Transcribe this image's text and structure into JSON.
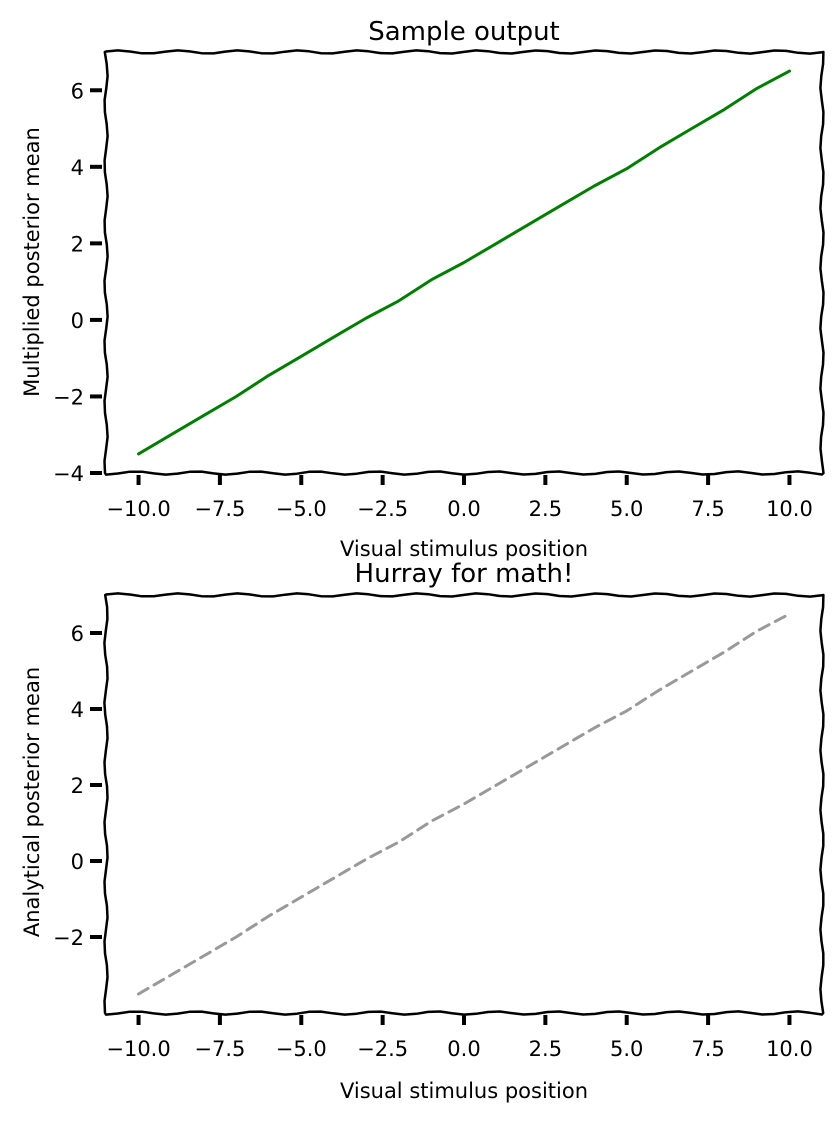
{
  "chart_data": [
    {
      "type": "line",
      "title": "Sample output",
      "xlabel": "Visual stimulus position",
      "ylabel": "Multiplied posterior mean",
      "xlim": [
        -11.0,
        11.0
      ],
      "ylim": [
        -4.0,
        7.0
      ],
      "xticks": [
        -10.0,
        -7.5,
        -5.0,
        -2.5,
        0.0,
        2.5,
        5.0,
        7.5,
        10.0
      ],
      "xtick_labels": [
        "−10.0",
        "−7.5",
        "−5.0",
        "−2.5",
        "0.0",
        "2.5",
        "5.0",
        "7.5",
        "10.0"
      ],
      "yticks": [
        -4,
        -2,
        0,
        2,
        4,
        6
      ],
      "ytick_labels": [
        "−4",
        "−2",
        "0",
        "2",
        "4",
        "6"
      ],
      "grid": false,
      "series": [
        {
          "color": "#008000",
          "line_style": "solid",
          "x": [
            -10,
            -9,
            -8,
            -7,
            -6,
            -5,
            -4,
            -3,
            -2,
            -1,
            0,
            1,
            2,
            3,
            4,
            5,
            6,
            7,
            8,
            9,
            10
          ],
          "y": [
            -3.5,
            -3.0,
            -2.5,
            -2.0,
            -1.45,
            -0.95,
            -0.45,
            0.05,
            0.5,
            1.05,
            1.5,
            2.0,
            2.5,
            3.0,
            3.5,
            3.95,
            4.5,
            5.0,
            5.5,
            6.05,
            6.5
          ]
        }
      ]
    },
    {
      "type": "line",
      "title": "Hurray for math!",
      "xlabel": "Visual stimulus position",
      "ylabel": "Analytical posterior mean",
      "xlim": [
        -11.0,
        11.0
      ],
      "ylim": [
        -4.0,
        7.0
      ],
      "xticks": [
        -10.0,
        -7.5,
        -5.0,
        -2.5,
        0.0,
        2.5,
        5.0,
        7.5,
        10.0
      ],
      "xtick_labels": [
        "−10.0",
        "−7.5",
        "−5.0",
        "−2.5",
        "0.0",
        "2.5",
        "5.0",
        "7.5",
        "10.0"
      ],
      "yticks": [
        -2,
        0,
        2,
        4,
        6
      ],
      "ytick_labels": [
        "−2",
        "0",
        "2",
        "4",
        "6"
      ],
      "grid": false,
      "series": [
        {
          "color": "#999999",
          "line_style": "dashed",
          "x": [
            -10,
            -9,
            -8,
            -7,
            -6,
            -5,
            -4,
            -3,
            -2,
            -1,
            0,
            1,
            2,
            3,
            4,
            5,
            6,
            7,
            8,
            9,
            10
          ],
          "y": [
            -3.5,
            -3.0,
            -2.5,
            -2.0,
            -1.45,
            -0.95,
            -0.45,
            0.05,
            0.5,
            1.05,
            1.5,
            2.0,
            2.5,
            3.0,
            3.5,
            3.95,
            4.5,
            5.0,
            5.5,
            6.05,
            6.5
          ]
        }
      ]
    }
  ]
}
